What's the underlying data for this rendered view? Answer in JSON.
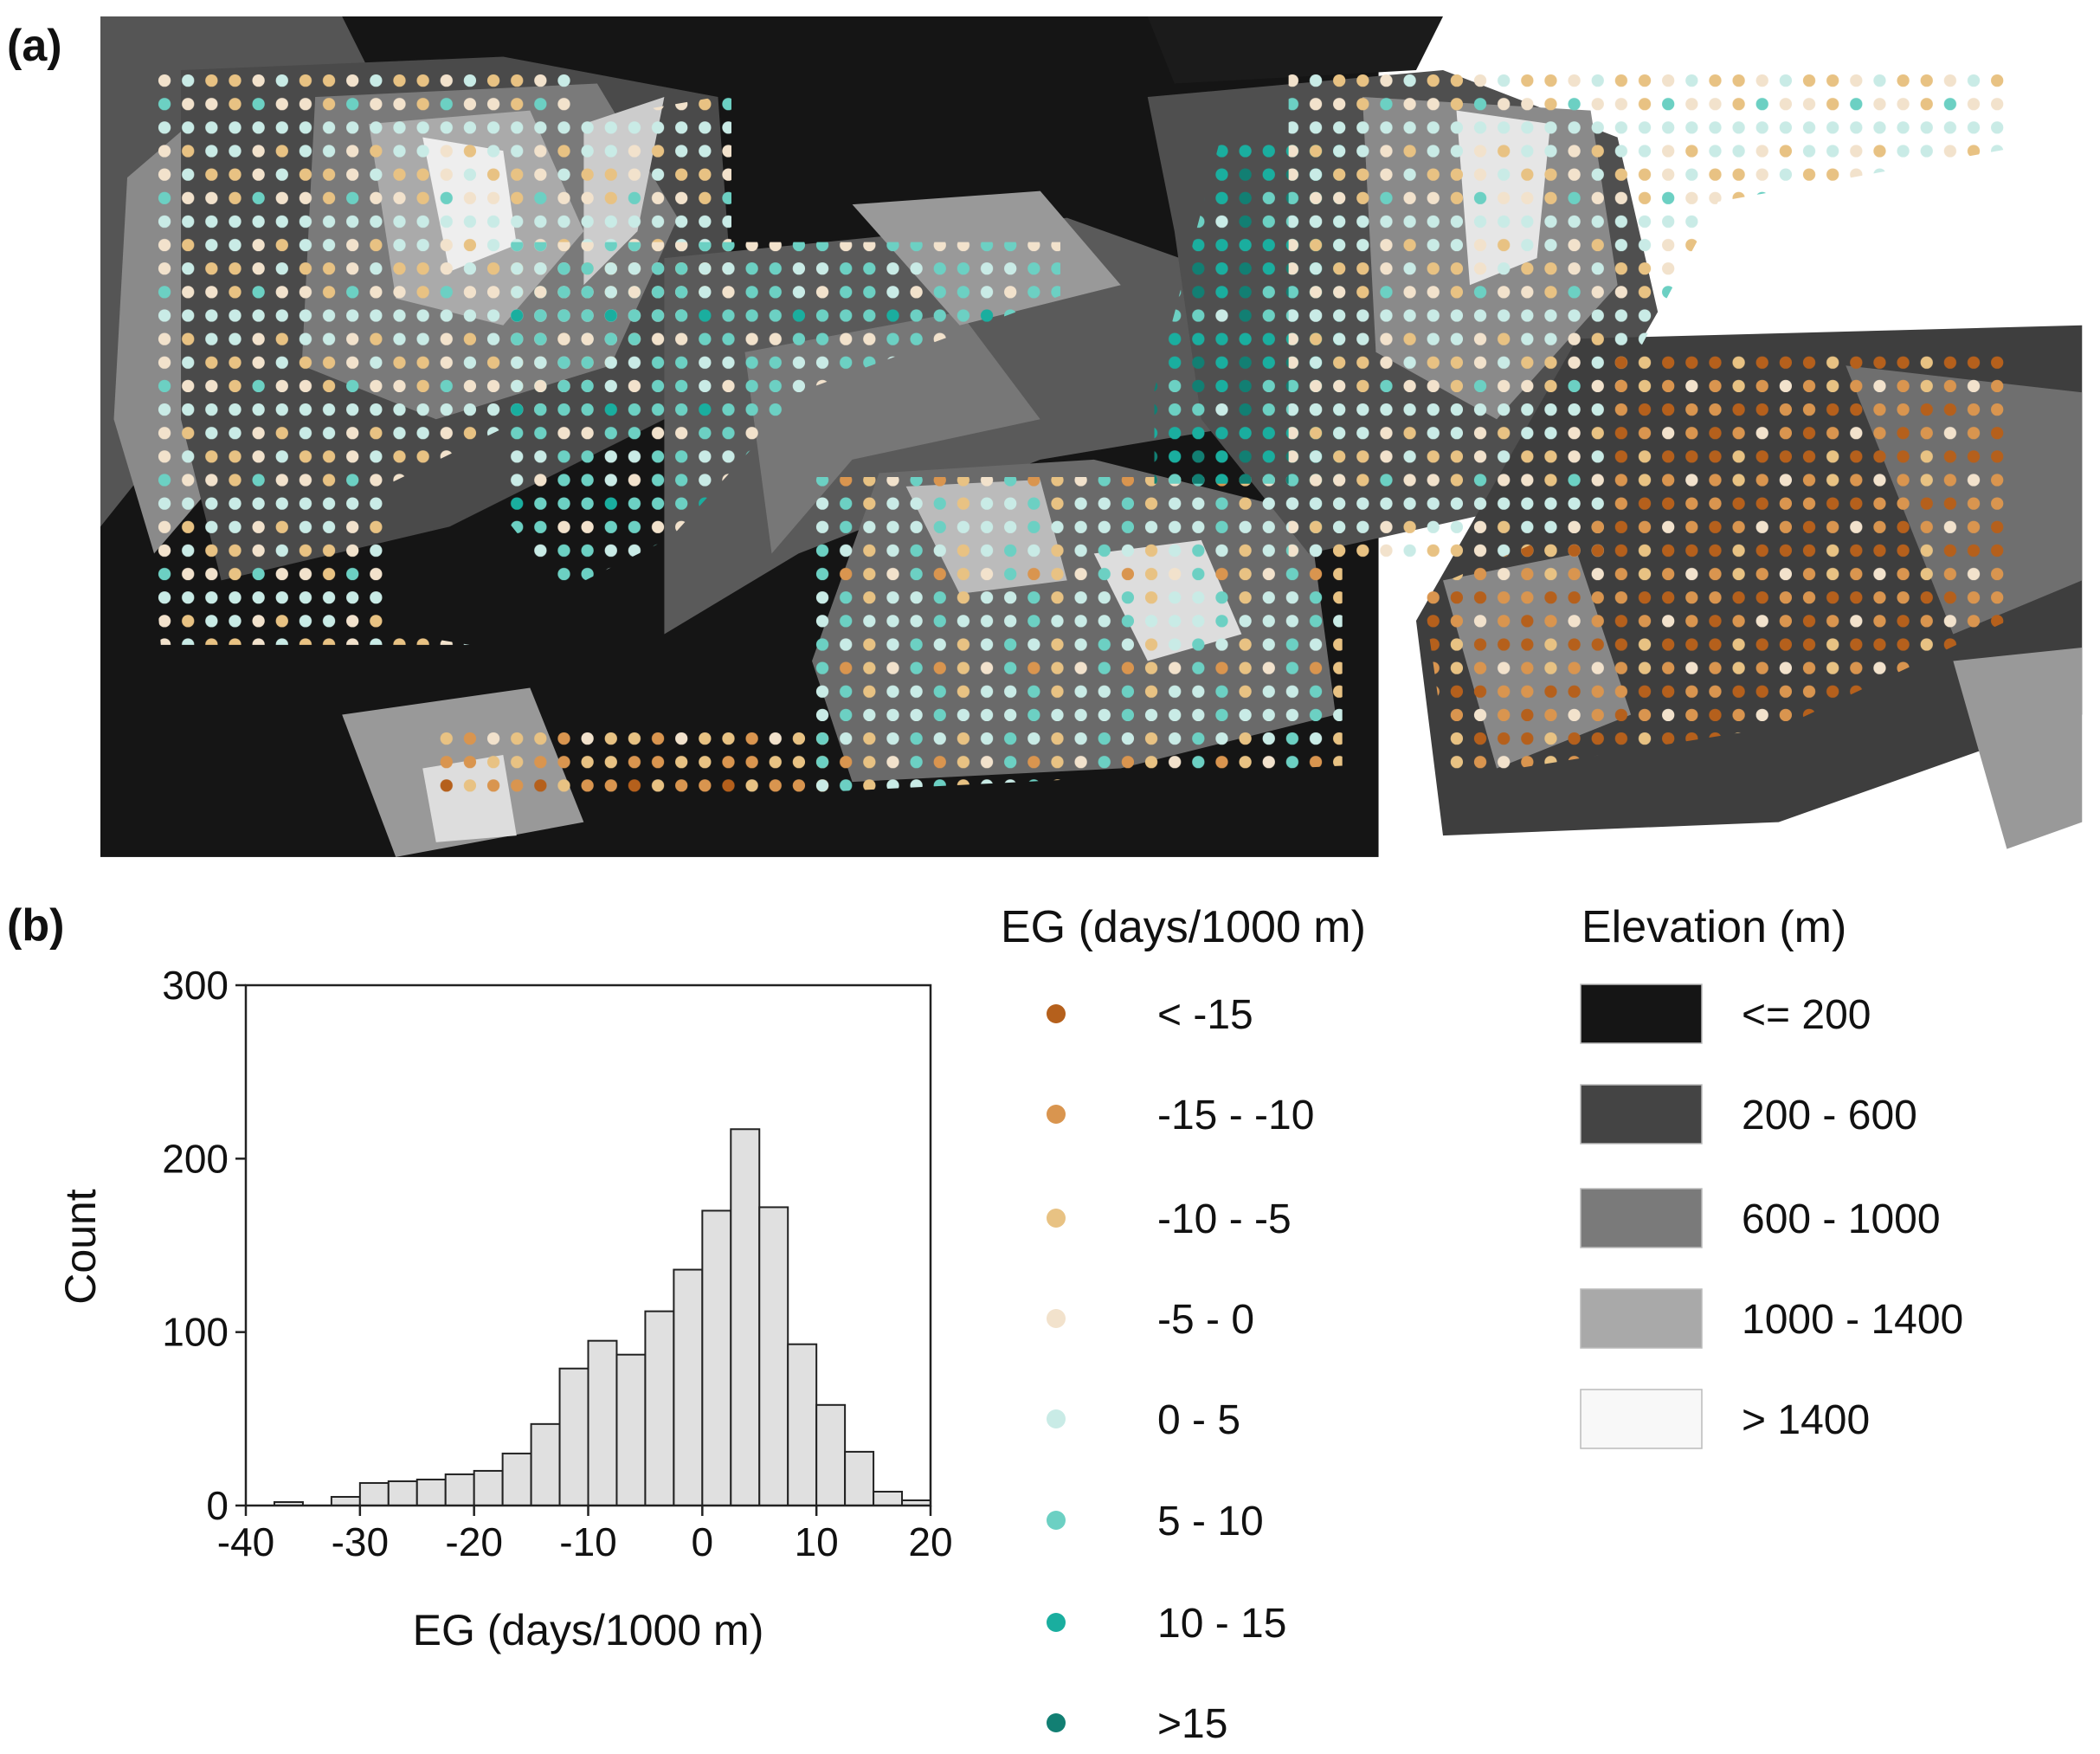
{
  "panels": {
    "a": "(a)",
    "b": "(b)"
  },
  "chart_data": {
    "type": "histogram",
    "x_label": "EG (days/1000 m)",
    "y_label": "Count",
    "bins": [
      -37.5,
      -35,
      -32.5,
      -30,
      -27.5,
      -25,
      -22.5,
      -20,
      -17.5,
      -15,
      -12.5,
      -10,
      -7.5,
      -5,
      -2.5,
      0,
      2.5,
      5,
      7.5,
      10,
      12.5,
      15,
      17.5,
      20
    ],
    "values": [
      2,
      0,
      5,
      13,
      14,
      15,
      18,
      20,
      30,
      47,
      79,
      95,
      87,
      112,
      136,
      170,
      217,
      172,
      93,
      58,
      31,
      8,
      3
    ],
    "color": "#e0e0e0",
    "xlim": [
      -40,
      20
    ],
    "xticks": [
      -40,
      -30,
      -20,
      -10,
      0,
      10,
      20
    ],
    "ylim": [
      0,
      300
    ],
    "yticks": [
      0,
      100,
      200,
      300
    ]
  },
  "legends": {
    "eg": {
      "title": "EG (days/1000 m)",
      "items": [
        {
          "label": "< -15",
          "color": "#b5601c"
        },
        {
          "label": "-15 - -10",
          "color": "#d9954f"
        },
        {
          "label": "-10 - -5",
          "color": "#e8c283"
        },
        {
          "label": "-5 - 0",
          "color": "#f2e2cc"
        },
        {
          "label": "0 - 5",
          "color": "#c9ebe6"
        },
        {
          "label": "5 - 10",
          "color": "#6cd0c3"
        },
        {
          "label": "10 - 15",
          "color": "#1aae9f"
        },
        {
          "label": ">15",
          "color": "#127f73"
        }
      ]
    },
    "elevation": {
      "title": "Elevation (m)",
      "items": [
        {
          "label": "<= 200",
          "color": "#151515"
        },
        {
          "label": "200 - 600",
          "color": "#444444"
        },
        {
          "label": "600 - 1000",
          "color": "#7a7a7a"
        },
        {
          "label": "1000 - 1400",
          "color": "#a9a9a9"
        },
        {
          "label": "> 1400",
          "color": "#f8f8f8"
        }
      ]
    }
  }
}
